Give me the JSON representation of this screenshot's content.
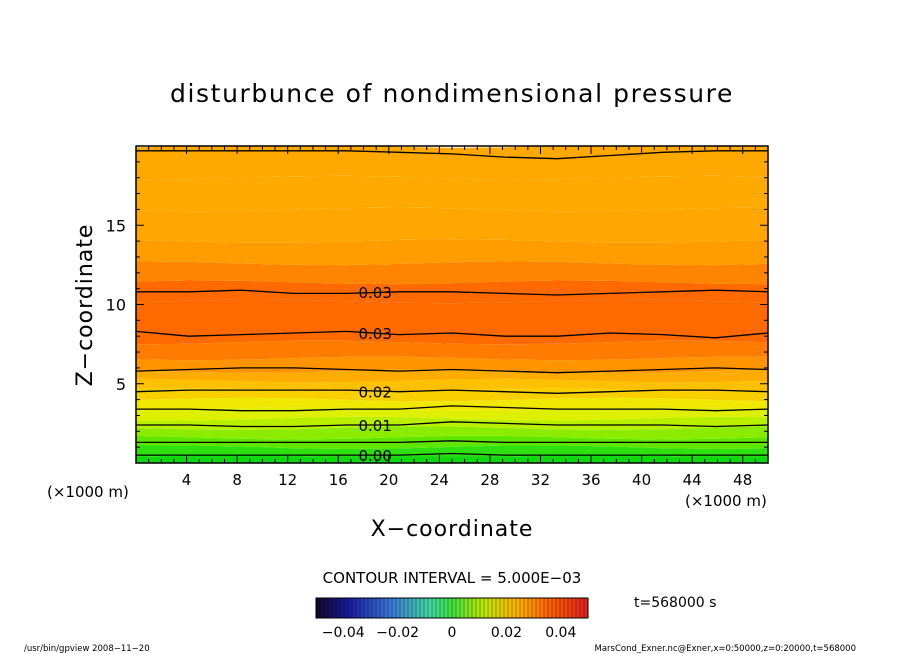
{
  "chart_data": {
    "type": "heatmap",
    "title": "disturbunce of nondimensional pressure",
    "xlabel": "X−coordinate",
    "ylabel": "Z−coordinate",
    "x_unit_left": "(×1000 m)",
    "x_unit_right": "(×1000 m)",
    "xlim": [
      0,
      50
    ],
    "ylim": [
      0,
      20
    ],
    "x_ticks": [
      4,
      8,
      12,
      16,
      20,
      24,
      28,
      32,
      36,
      40,
      44,
      48
    ],
    "y_ticks": [
      5,
      10,
      15
    ],
    "grid": false,
    "contour_interval_text": "CONTOUR INTERVAL = 5.000E−03",
    "contour_interval": 0.005,
    "contour_labels": [
      {
        "text": "0.03",
        "x": 17.5,
        "z": 10.8
      },
      {
        "text": "0.03",
        "x": 17.5,
        "z": 8.2
      },
      {
        "text": "0.02",
        "x": 17.5,
        "z": 4.5
      },
      {
        "text": "0.01",
        "x": 17.5,
        "z": 2.4
      },
      {
        "text": "0.00",
        "x": 17.5,
        "z": 0.5
      }
    ],
    "contours": [
      {
        "level": 0.0,
        "z": [
          0.5,
          0.5,
          0.5,
          0.5,
          0.5,
          0.5,
          0.6,
          0.5,
          0.5,
          0.5,
          0.5,
          0.5,
          0.5
        ]
      },
      {
        "level": 0.005,
        "z": [
          1.3,
          1.3,
          1.3,
          1.3,
          1.3,
          1.3,
          1.4,
          1.3,
          1.3,
          1.3,
          1.3,
          1.3,
          1.3
        ]
      },
      {
        "level": 0.01,
        "z": [
          2.4,
          2.4,
          2.3,
          2.3,
          2.4,
          2.4,
          2.6,
          2.5,
          2.4,
          2.4,
          2.4,
          2.3,
          2.4
        ]
      },
      {
        "level": 0.015,
        "z": [
          3.4,
          3.4,
          3.3,
          3.3,
          3.4,
          3.4,
          3.6,
          3.5,
          3.4,
          3.4,
          3.4,
          3.3,
          3.4
        ]
      },
      {
        "level": 0.02,
        "z": [
          4.5,
          4.6,
          4.6,
          4.6,
          4.6,
          4.5,
          4.6,
          4.5,
          4.4,
          4.5,
          4.6,
          4.6,
          4.5
        ]
      },
      {
        "level": 0.025,
        "z": [
          5.8,
          5.9,
          6.0,
          6.0,
          5.9,
          5.8,
          5.9,
          5.8,
          5.7,
          5.8,
          5.9,
          6.0,
          5.9
        ]
      },
      {
        "level": 0.03,
        "z": [
          8.3,
          8.0,
          8.1,
          8.2,
          8.3,
          8.1,
          8.2,
          8.0,
          8.0,
          8.2,
          8.1,
          7.9,
          8.2
        ]
      },
      {
        "level": 0.03,
        "z": [
          10.8,
          10.8,
          10.9,
          10.7,
          10.7,
          10.8,
          10.8,
          10.7,
          10.6,
          10.7,
          10.8,
          10.9,
          10.8
        ]
      },
      {
        "level": 0.025,
        "z": [
          19.7,
          19.7,
          19.7,
          19.7,
          19.7,
          19.6,
          19.5,
          19.3,
          19.2,
          19.4,
          19.6,
          19.7,
          19.7
        ]
      }
    ],
    "colorbar": {
      "range": [
        -0.05,
        0.05
      ],
      "ticks": [
        "−0.04",
        "−0.02",
        "0",
        "0.02",
        "0.04"
      ],
      "tick_values": [
        -0.04,
        -0.02,
        0,
        0.02,
        0.04
      ]
    },
    "colors": {
      "min_blue": "#1a1a90",
      "zero_green": "#38d400",
      "mid_yellow": "#e8f000",
      "orange": "#ffa500",
      "max_red": "#e03010",
      "frame": "#000000"
    }
  },
  "time_label": "t=568000 s",
  "footer_left": "/usr/bin/gpview   2008−11−20",
  "footer_right": "MarsCond_Exner.nc@Exner,x=0:50000,z=0:20000,t=568000"
}
